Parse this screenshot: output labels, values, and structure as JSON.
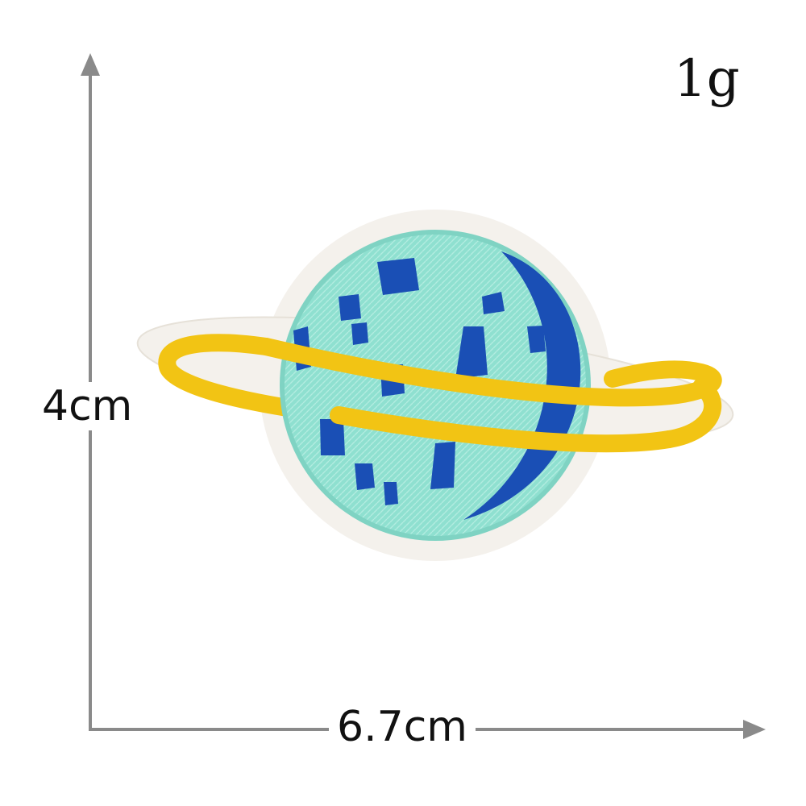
{
  "weight_label": "1g",
  "height_label": "4cm",
  "width_label": "6.7cm",
  "colors": {
    "axis": "#8a8a8a",
    "planet": "#8fe0d0",
    "ring": "#f2c414",
    "crater": "#1a4fb5",
    "border": "#f4f1ec"
  },
  "illustration": "embroidered-planet-patch"
}
